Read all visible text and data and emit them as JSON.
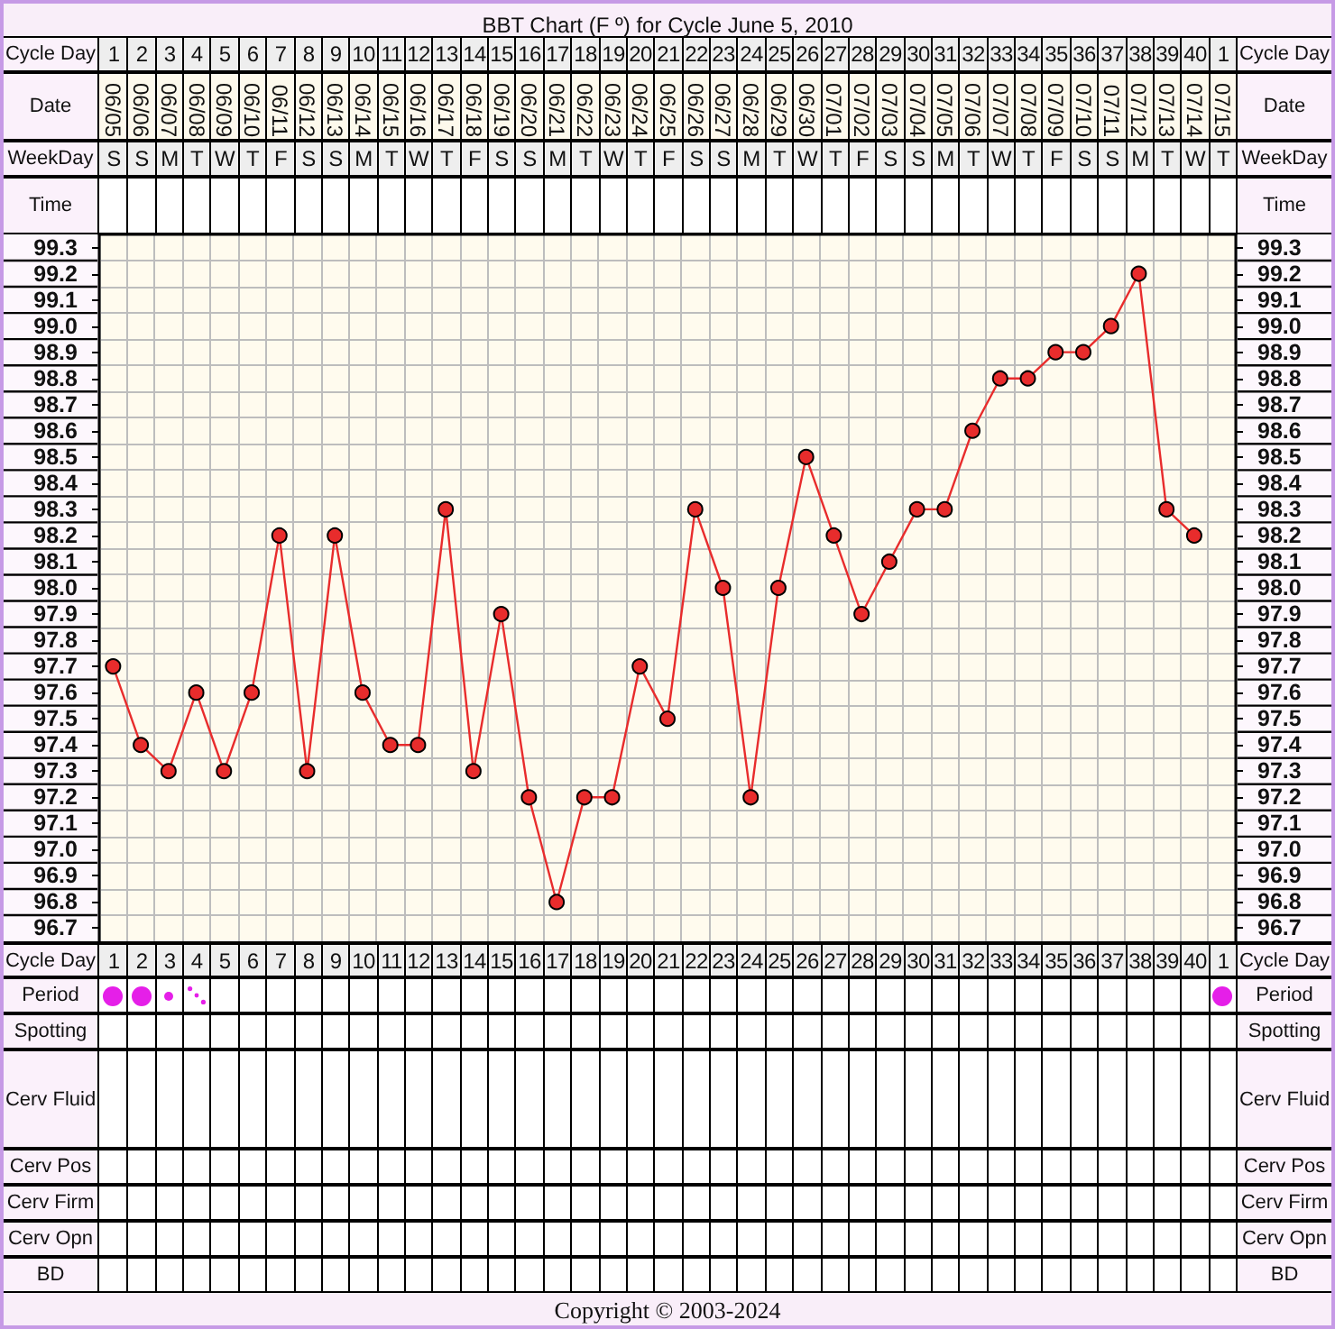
{
  "chart_data": {
    "type": "line",
    "title": "BBT Chart (F º) for Cycle June 5, 2010",
    "categories": [
      "06/05",
      "06/06",
      "06/07",
      "06/08",
      "06/09",
      "06/10",
      "06/11",
      "06/12",
      "06/13",
      "06/14",
      "06/15",
      "06/16",
      "06/17",
      "06/18",
      "06/19",
      "06/20",
      "06/21",
      "06/22",
      "06/23",
      "06/24",
      "06/25",
      "06/26",
      "06/27",
      "06/28",
      "06/29",
      "06/30",
      "07/01",
      "07/02",
      "07/03",
      "07/04",
      "07/05",
      "07/06",
      "07/07",
      "07/08",
      "07/09",
      "07/10",
      "07/11",
      "07/12",
      "07/13",
      "07/14",
      "07/15"
    ],
    "series": [
      {
        "color": "#e82c2c",
        "values": [
          97.7,
          97.4,
          97.3,
          97.6,
          97.3,
          97.6,
          98.2,
          97.3,
          98.2,
          97.6,
          97.4,
          97.4,
          98.3,
          97.3,
          97.9,
          97.2,
          96.8,
          97.2,
          97.2,
          97.7,
          97.5,
          98.3,
          98.0,
          97.2,
          98.0,
          98.5,
          98.2,
          97.9,
          98.1,
          98.3,
          98.3,
          98.6,
          98.8,
          98.8,
          98.9,
          98.9,
          99.0,
          99.2,
          98.3,
          98.2,
          null
        ]
      }
    ],
    "ylim": [
      96.65,
      99.35
    ],
    "yticks": [
      96.7,
      {
        "value": 96.75,
        "label": null
      },
      96.8,
      {
        "value": 96.85,
        "label": null
      },
      96.9,
      {
        "value": 96.95,
        "label": null
      },
      {
        "value": 97,
        "label": "97.0"
      },
      {
        "value": 97.05,
        "label": null
      },
      97.1,
      {
        "value": 97.15,
        "label": null
      },
      97.2,
      {
        "value": 97.25,
        "label": null
      },
      97.3,
      {
        "value": 97.35,
        "label": null
      },
      97.4,
      {
        "value": 97.45,
        "label": null
      },
      97.5,
      {
        "value": 97.55,
        "label": null
      },
      97.6,
      {
        "value": 97.65,
        "label": null
      },
      97.7,
      {
        "value": 97.75,
        "label": null
      },
      97.8,
      {
        "value": 97.85,
        "label": null
      },
      97.9,
      {
        "value": 97.95,
        "label": null
      },
      {
        "value": 98,
        "label": "98.0"
      },
      {
        "value": 98.05,
        "label": null
      },
      98.1,
      {
        "value": 98.15,
        "label": null
      },
      98.2,
      {
        "value": 98.25,
        "label": null
      },
      98.3,
      {
        "value": 98.35,
        "label": null
      },
      98.4,
      {
        "value": 98.45,
        "label": null
      },
      98.5,
      {
        "value": 98.55,
        "label": null
      },
      98.6,
      {
        "value": 98.65,
        "label": null
      },
      98.7,
      {
        "value": 98.75,
        "label": null
      },
      98.8,
      {
        "value": 98.85,
        "label": null
      },
      98.9,
      {
        "value": 98.95,
        "label": null
      },
      {
        "value": 99,
        "label": "99.0"
      },
      {
        "value": 99.05,
        "label": null
      },
      99.1,
      {
        "value": 99.15,
        "label": null
      },
      99.2,
      {
        "value": 99.25,
        "label": null
      },
      99.3
    ],
    "y2lim": [
      96.65,
      99.35
    ],
    "y2ticks": [
      96.7,
      {
        "value": 96.75,
        "label": null
      },
      96.8,
      {
        "value": 96.85,
        "label": null
      },
      96.9,
      {
        "value": 96.95,
        "label": null
      },
      {
        "value": 97,
        "label": "97.0"
      },
      {
        "value": 97.05,
        "label": null
      },
      97.1,
      {
        "value": 97.15,
        "label": null
      },
      97.2,
      {
        "value": 97.25,
        "label": null
      },
      97.3,
      {
        "value": 97.35,
        "label": null
      },
      97.4,
      {
        "value": 97.45,
        "label": null
      },
      97.5,
      {
        "value": 97.55,
        "label": null
      },
      97.6,
      {
        "value": 97.65,
        "label": null
      },
      97.7,
      {
        "value": 97.75,
        "label": null
      },
      97.8,
      {
        "value": 97.85,
        "label": null
      },
      97.9,
      {
        "value": 97.95,
        "label": null
      },
      {
        "value": 98,
        "label": "98.0"
      },
      {
        "value": 98.05,
        "label": null
      },
      98.1,
      {
        "value": 98.15,
        "label": null
      },
      98.2,
      {
        "value": 98.25,
        "label": null
      },
      98.3,
      {
        "value": 98.35,
        "label": null
      },
      98.4,
      {
        "value": 98.45,
        "label": null
      },
      98.5,
      {
        "value": 98.55,
        "label": null
      },
      98.6,
      {
        "value": 98.65,
        "label": null
      },
      98.7,
      {
        "value": 98.75,
        "label": null
      },
      98.8,
      {
        "value": 98.85,
        "label": null
      },
      98.9,
      {
        "value": 98.95,
        "label": null
      },
      {
        "value": 99,
        "label": "99.0"
      },
      {
        "value": 99.05,
        "label": null
      },
      99.1,
      {
        "value": 99.15,
        "label": null
      },
      99.2,
      {
        "value": 99.25,
        "label": null
      },
      99.3
    ],
    "grid": true,
    "marker": "circle",
    "annotations": [
      "Cycle Day",
      "Date",
      "WeekDay",
      "Time",
      "Period",
      "Spotting",
      "Cerv Fluid",
      "Cerv Pos",
      "Cerv Firm",
      "Cerv Opn",
      "BD",
      "1",
      "2",
      "3",
      "4",
      "5",
      "6",
      "7",
      "8",
      "9",
      "10",
      "11",
      "12",
      "13",
      "14",
      "15",
      "16",
      "17",
      "18",
      "19",
      "20",
      "21",
      "22",
      "23",
      "24",
      "25",
      "26",
      "27",
      "28",
      "29",
      "30",
      "31",
      "32",
      "33",
      "34",
      "35",
      "36",
      "37",
      "38",
      "39",
      "40",
      "1",
      "S",
      "S",
      "M",
      "T",
      "W",
      "T",
      "F",
      "S",
      "S",
      "M",
      "T",
      "W",
      "T",
      "F",
      "S",
      "S",
      "M",
      "T",
      "W",
      "T",
      "F",
      "S",
      "S",
      "M",
      "T",
      "W",
      "T",
      "F",
      "S",
      "S",
      "M",
      "T",
      "W",
      "T",
      "F",
      "S",
      "S",
      "M",
      "T",
      "W",
      "T",
      "Copyright © 2003-2024"
    ]
  }
}
